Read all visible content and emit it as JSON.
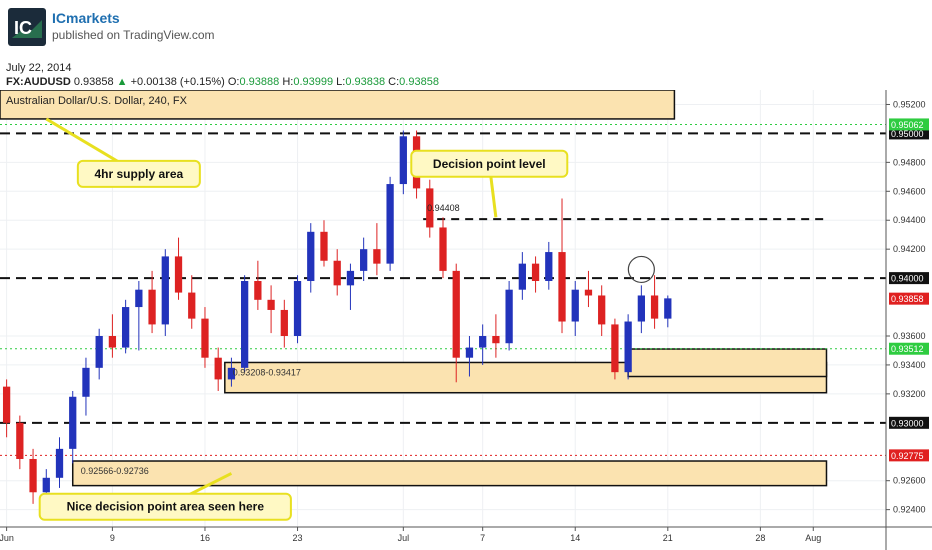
{
  "header": {
    "brand": "ICmarkets",
    "logo_text": "IC",
    "published": "published on TradingView.com"
  },
  "info": {
    "date": "July 22, 2014",
    "symbol": "FX:AUDUSD",
    "last": "0.93858",
    "change": "+0.00138 (+0.15%)",
    "open_label": "O:",
    "open": "0.93888",
    "high_label": "H:",
    "high": "0.93999",
    "low_label": "L:",
    "low": "0.93838",
    "close_label": "C:",
    "close": "0.93858"
  },
  "colors": {
    "up": "#2233bb",
    "down": "#dd2222",
    "zone_fill": "#fbe3b0",
    "callout_fill": "#fff9c4",
    "callout_border": "#e8e020",
    "green_line": "#2ecc40",
    "red_line": "#e02020"
  },
  "chart_data": {
    "type": "candlestick",
    "title": "Australian Dollar/U.S. Dollar, 240, FX",
    "ylim": [
      0.9228,
      0.953
    ],
    "y_ticks": [
      "0.95200",
      "0.94800",
      "0.94600",
      "0.94400",
      "0.94200",
      "0.93600",
      "0.93400",
      "0.93200",
      "0.92600",
      "0.92400"
    ],
    "x_ticks": [
      {
        "label": "Jun",
        "x": 0
      },
      {
        "label": "9",
        "x": 8
      },
      {
        "label": "16",
        "x": 15
      },
      {
        "label": "23",
        "x": 22
      },
      {
        "label": "Jul",
        "x": 30
      },
      {
        "label": "7",
        "x": 36
      },
      {
        "label": "14",
        "x": 43
      },
      {
        "label": "21",
        "x": 50
      },
      {
        "label": "28",
        "x": 57
      },
      {
        "label": "Aug",
        "x": 61
      }
    ],
    "xlim": [
      -0.5,
      66.5
    ],
    "price_lines": [
      {
        "y": 0.95,
        "label": "0.95000",
        "style": "black-dashed"
      },
      {
        "y": 0.94,
        "label": "0.94000",
        "style": "black-dashed"
      },
      {
        "y": 0.93,
        "label": "0.93000",
        "style": "black-dashed"
      },
      {
        "y": 0.95062,
        "label": "0.95062",
        "style": "green-dotted"
      },
      {
        "y": 0.93512,
        "label": "0.93512",
        "style": "green-dotted"
      },
      {
        "y": 0.92775,
        "label": "0.92775",
        "style": "red-dotted"
      }
    ],
    "last_price": {
      "y": 0.93858,
      "label": "0.93858"
    },
    "decision_line": {
      "y": 0.94408,
      "label": "0.94408",
      "x_start": 31.5,
      "x_end": 62
    },
    "zones": [
      {
        "name": "supply-zone",
        "y_top": 0.953,
        "y_bottom": 0.951,
        "x_start": -0.5,
        "x_end": 50.5,
        "label": "Australian Dollar/U.S. Dollar, 240, FX"
      },
      {
        "name": "demand-zone-1",
        "y_top": 0.93417,
        "y_bottom": 0.93208,
        "x_start": 16.5,
        "x_end": 62,
        "label": "0.93208-0.93417"
      },
      {
        "name": "demand-zone-2",
        "y_top": 0.9351,
        "y_bottom": 0.9332,
        "x_start": 47,
        "x_end": 62,
        "label": ""
      },
      {
        "name": "demand-zone-3",
        "y_top": 0.92736,
        "y_bottom": 0.92566,
        "x_start": 5,
        "x_end": 62,
        "label": "0.92566-0.92736"
      }
    ],
    "annotations": [
      {
        "name": "supply-callout",
        "text": "4hr supply area",
        "x": 10,
        "y": 0.9472,
        "pointer": [
          3,
          0.951
        ]
      },
      {
        "name": "decision-callout",
        "text": "Decision point level",
        "x": 36.5,
        "y": 0.9479,
        "pointer": [
          37,
          0.9442
        ]
      },
      {
        "name": "nice-decision-callout",
        "text": "Nice decision point area seen here",
        "x": 12,
        "y": 0.9242,
        "pointer": [
          17,
          0.9265
        ]
      }
    ],
    "circle_marker": {
      "x": 48,
      "y": 0.9406
    },
    "candles": [
      {
        "o": 0.9325,
        "h": 0.933,
        "l": 0.929,
        "c": 0.93
      },
      {
        "o": 0.93,
        "h": 0.9305,
        "l": 0.9268,
        "c": 0.9275
      },
      {
        "o": 0.9275,
        "h": 0.9282,
        "l": 0.9244,
        "c": 0.9252
      },
      {
        "o": 0.9252,
        "h": 0.9268,
        "l": 0.924,
        "c": 0.9262
      },
      {
        "o": 0.9262,
        "h": 0.929,
        "l": 0.9255,
        "c": 0.9282
      },
      {
        "o": 0.9282,
        "h": 0.9322,
        "l": 0.9272,
        "c": 0.9318
      },
      {
        "o": 0.9318,
        "h": 0.9345,
        "l": 0.9305,
        "c": 0.9338
      },
      {
        "o": 0.9338,
        "h": 0.9365,
        "l": 0.933,
        "c": 0.936
      },
      {
        "o": 0.936,
        "h": 0.9375,
        "l": 0.9345,
        "c": 0.9352
      },
      {
        "o": 0.9352,
        "h": 0.9385,
        "l": 0.9348,
        "c": 0.938
      },
      {
        "o": 0.938,
        "h": 0.9398,
        "l": 0.935,
        "c": 0.9392
      },
      {
        "o": 0.9392,
        "h": 0.9405,
        "l": 0.9362,
        "c": 0.9368
      },
      {
        "o": 0.9368,
        "h": 0.942,
        "l": 0.936,
        "c": 0.9415
      },
      {
        "o": 0.9415,
        "h": 0.9428,
        "l": 0.9385,
        "c": 0.939
      },
      {
        "o": 0.939,
        "h": 0.9402,
        "l": 0.9365,
        "c": 0.9372
      },
      {
        "o": 0.9372,
        "h": 0.938,
        "l": 0.9338,
        "c": 0.9345
      },
      {
        "o": 0.9345,
        "h": 0.9352,
        "l": 0.9322,
        "c": 0.933
      },
      {
        "o": 0.933,
        "h": 0.9345,
        "l": 0.9325,
        "c": 0.9338
      },
      {
        "o": 0.9338,
        "h": 0.9402,
        "l": 0.9335,
        "c": 0.9398
      },
      {
        "o": 0.9398,
        "h": 0.9412,
        "l": 0.9378,
        "c": 0.9385
      },
      {
        "o": 0.9385,
        "h": 0.9395,
        "l": 0.9362,
        "c": 0.9378
      },
      {
        "o": 0.9378,
        "h": 0.9385,
        "l": 0.9352,
        "c": 0.936
      },
      {
        "o": 0.936,
        "h": 0.9402,
        "l": 0.9355,
        "c": 0.9398
      },
      {
        "o": 0.9398,
        "h": 0.9438,
        "l": 0.939,
        "c": 0.9432
      },
      {
        "o": 0.9432,
        "h": 0.944,
        "l": 0.9408,
        "c": 0.9412
      },
      {
        "o": 0.9412,
        "h": 0.942,
        "l": 0.9388,
        "c": 0.9395
      },
      {
        "o": 0.9395,
        "h": 0.941,
        "l": 0.9378,
        "c": 0.9405
      },
      {
        "o": 0.9405,
        "h": 0.9428,
        "l": 0.9398,
        "c": 0.942
      },
      {
        "o": 0.942,
        "h": 0.9438,
        "l": 0.9402,
        "c": 0.941
      },
      {
        "o": 0.941,
        "h": 0.947,
        "l": 0.9405,
        "c": 0.9465
      },
      {
        "o": 0.9465,
        "h": 0.9502,
        "l": 0.9458,
        "c": 0.9498
      },
      {
        "o": 0.9498,
        "h": 0.9502,
        "l": 0.9455,
        "c": 0.9462
      },
      {
        "o": 0.9462,
        "h": 0.9468,
        "l": 0.9428,
        "c": 0.9435
      },
      {
        "o": 0.9435,
        "h": 0.9442,
        "l": 0.94,
        "c": 0.9405
      },
      {
        "o": 0.9405,
        "h": 0.941,
        "l": 0.9328,
        "c": 0.9345
      },
      {
        "o": 0.9345,
        "h": 0.936,
        "l": 0.9332,
        "c": 0.9352
      },
      {
        "o": 0.9352,
        "h": 0.9368,
        "l": 0.934,
        "c": 0.936
      },
      {
        "o": 0.936,
        "h": 0.9375,
        "l": 0.9345,
        "c": 0.9355
      },
      {
        "o": 0.9355,
        "h": 0.9398,
        "l": 0.935,
        "c": 0.9392
      },
      {
        "o": 0.9392,
        "h": 0.9418,
        "l": 0.9385,
        "c": 0.941
      },
      {
        "o": 0.941,
        "h": 0.9415,
        "l": 0.939,
        "c": 0.9398
      },
      {
        "o": 0.9398,
        "h": 0.9425,
        "l": 0.9392,
        "c": 0.9418
      },
      {
        "o": 0.9418,
        "h": 0.9455,
        "l": 0.9362,
        "c": 0.937
      },
      {
        "o": 0.937,
        "h": 0.9398,
        "l": 0.936,
        "c": 0.9392
      },
      {
        "o": 0.9392,
        "h": 0.9405,
        "l": 0.938,
        "c": 0.9388
      },
      {
        "o": 0.9388,
        "h": 0.9395,
        "l": 0.936,
        "c": 0.9368
      },
      {
        "o": 0.9368,
        "h": 0.9372,
        "l": 0.933,
        "c": 0.9335
      },
      {
        "o": 0.9335,
        "h": 0.9375,
        "l": 0.933,
        "c": 0.937
      },
      {
        "o": 0.937,
        "h": 0.9395,
        "l": 0.9362,
        "c": 0.9388
      },
      {
        "o": 0.9388,
        "h": 0.9402,
        "l": 0.9365,
        "c": 0.9372
      },
      {
        "o": 0.9372,
        "h": 0.9388,
        "l": 0.9366,
        "c": 0.9386
      }
    ]
  }
}
